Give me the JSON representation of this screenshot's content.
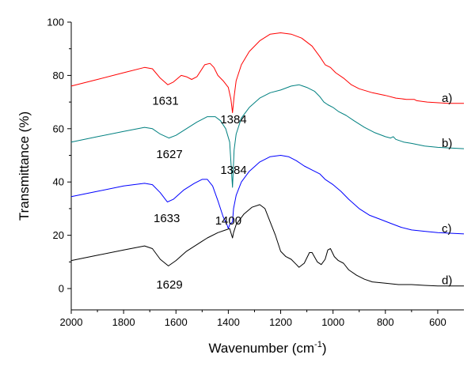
{
  "chart_data": {
    "type": "line",
    "xlabel": "Wavenumber (cm",
    "xlabel_sup": "-1",
    "xlabel_tail": ")",
    "ylabel": "Transmittance (%)",
    "xlim": [
      2000,
      500
    ],
    "ylim": [
      -8,
      100
    ],
    "x_reversed": true,
    "x_ticks": [
      2000,
      1800,
      1600,
      1400,
      1200,
      1000,
      800,
      600
    ],
    "y_ticks": [
      0,
      20,
      40,
      60,
      80,
      100
    ],
    "grid": false,
    "series": [
      {
        "name": "a)",
        "color": "#ff0000",
        "points": [
          [
            2000,
            76
          ],
          [
            1900,
            78.5
          ],
          [
            1800,
            81
          ],
          [
            1720,
            83
          ],
          [
            1690,
            82.5
          ],
          [
            1660,
            79
          ],
          [
            1631,
            76.5
          ],
          [
            1610,
            77.5
          ],
          [
            1580,
            80
          ],
          [
            1560,
            79.5
          ],
          [
            1540,
            78.5
          ],
          [
            1520,
            79.5
          ],
          [
            1490,
            84
          ],
          [
            1470,
            84.5
          ],
          [
            1455,
            83
          ],
          [
            1440,
            80
          ],
          [
            1420,
            78
          ],
          [
            1400,
            75.5
          ],
          [
            1390,
            71
          ],
          [
            1384,
            66
          ],
          [
            1378,
            72
          ],
          [
            1370,
            78
          ],
          [
            1350,
            84
          ],
          [
            1320,
            89
          ],
          [
            1280,
            93
          ],
          [
            1240,
            95.5
          ],
          [
            1200,
            96
          ],
          [
            1160,
            95.5
          ],
          [
            1120,
            94
          ],
          [
            1080,
            91
          ],
          [
            1050,
            87
          ],
          [
            1030,
            84
          ],
          [
            1010,
            83
          ],
          [
            990,
            81
          ],
          [
            960,
            79
          ],
          [
            930,
            76.5
          ],
          [
            900,
            75
          ],
          [
            850,
            73.5
          ],
          [
            800,
            72.5
          ],
          [
            760,
            71.5
          ],
          [
            720,
            71
          ],
          [
            690,
            71
          ],
          [
            680,
            70.5
          ],
          [
            640,
            70
          ],
          [
            560,
            69.5
          ],
          [
            500,
            69.5
          ]
        ]
      },
      {
        "name": "b)",
        "color": "#008080",
        "points": [
          [
            2000,
            55
          ],
          [
            1900,
            57
          ],
          [
            1800,
            59
          ],
          [
            1720,
            60.5
          ],
          [
            1690,
            60
          ],
          [
            1660,
            58
          ],
          [
            1627,
            56.5
          ],
          [
            1600,
            57.5
          ],
          [
            1560,
            60
          ],
          [
            1520,
            62.5
          ],
          [
            1480,
            64.5
          ],
          [
            1450,
            64.5
          ],
          [
            1430,
            63
          ],
          [
            1410,
            60
          ],
          [
            1395,
            55
          ],
          [
            1384,
            38
          ],
          [
            1378,
            52
          ],
          [
            1370,
            58
          ],
          [
            1350,
            64
          ],
          [
            1320,
            68
          ],
          [
            1280,
            71.5
          ],
          [
            1240,
            73.5
          ],
          [
            1200,
            74.5
          ],
          [
            1160,
            76
          ],
          [
            1130,
            76.5
          ],
          [
            1100,
            75.5
          ],
          [
            1070,
            74
          ],
          [
            1050,
            72
          ],
          [
            1035,
            70
          ],
          [
            1020,
            69
          ],
          [
            1000,
            68
          ],
          [
            980,
            66.5
          ],
          [
            950,
            65
          ],
          [
            920,
            63
          ],
          [
            880,
            60.5
          ],
          [
            840,
            58.5
          ],
          [
            800,
            57
          ],
          [
            780,
            56.5
          ],
          [
            770,
            57
          ],
          [
            760,
            56
          ],
          [
            730,
            55
          ],
          [
            700,
            54.5
          ],
          [
            650,
            53.5
          ],
          [
            600,
            53
          ],
          [
            500,
            52.5
          ]
        ]
      },
      {
        "name": "c)",
        "color": "#0000ff",
        "points": [
          [
            2000,
            34.5
          ],
          [
            1900,
            36.5
          ],
          [
            1800,
            38.5
          ],
          [
            1720,
            39.5
          ],
          [
            1690,
            39
          ],
          [
            1660,
            36
          ],
          [
            1633,
            32.5
          ],
          [
            1610,
            33.5
          ],
          [
            1570,
            37
          ],
          [
            1530,
            39.5
          ],
          [
            1500,
            41
          ],
          [
            1480,
            41
          ],
          [
            1460,
            38.5
          ],
          [
            1440,
            33
          ],
          [
            1420,
            27
          ],
          [
            1405,
            24
          ],
          [
            1400,
            22.5
          ],
          [
            1395,
            24
          ],
          [
            1384,
            25
          ],
          [
            1380,
            30
          ],
          [
            1370,
            35
          ],
          [
            1350,
            40
          ],
          [
            1320,
            44
          ],
          [
            1280,
            47.5
          ],
          [
            1240,
            49.5
          ],
          [
            1200,
            50
          ],
          [
            1170,
            49.5
          ],
          [
            1140,
            48
          ],
          [
            1110,
            46
          ],
          [
            1080,
            44.5
          ],
          [
            1050,
            43
          ],
          [
            1030,
            41
          ],
          [
            1000,
            39
          ],
          [
            970,
            36.5
          ],
          [
            940,
            33.5
          ],
          [
            900,
            30
          ],
          [
            860,
            27.5
          ],
          [
            820,
            26
          ],
          [
            780,
            24.5
          ],
          [
            740,
            23
          ],
          [
            700,
            22
          ],
          [
            650,
            21.5
          ],
          [
            600,
            21
          ],
          [
            500,
            20.5
          ]
        ]
      },
      {
        "name": "d)",
        "color": "#000000",
        "points": [
          [
            2000,
            10.5
          ],
          [
            1900,
            12.5
          ],
          [
            1800,
            14.5
          ],
          [
            1720,
            16
          ],
          [
            1690,
            15
          ],
          [
            1660,
            11
          ],
          [
            1629,
            8.5
          ],
          [
            1600,
            10.5
          ],
          [
            1560,
            14
          ],
          [
            1520,
            16.5
          ],
          [
            1480,
            19
          ],
          [
            1440,
            21
          ],
          [
            1410,
            22
          ],
          [
            1395,
            22.5
          ],
          [
            1384,
            19
          ],
          [
            1380,
            21
          ],
          [
            1370,
            24
          ],
          [
            1340,
            28
          ],
          [
            1310,
            30.5
          ],
          [
            1280,
            31.5
          ],
          [
            1260,
            30
          ],
          [
            1240,
            25
          ],
          [
            1220,
            20
          ],
          [
            1200,
            14
          ],
          [
            1180,
            12
          ],
          [
            1160,
            11
          ],
          [
            1140,
            9
          ],
          [
            1130,
            8
          ],
          [
            1110,
            9.5
          ],
          [
            1090,
            13.5
          ],
          [
            1080,
            13.5
          ],
          [
            1060,
            10
          ],
          [
            1045,
            9
          ],
          [
            1030,
            11
          ],
          [
            1020,
            14.5
          ],
          [
            1010,
            15
          ],
          [
            995,
            12
          ],
          [
            980,
            10.5
          ],
          [
            960,
            9.5
          ],
          [
            940,
            7
          ],
          [
            910,
            5
          ],
          [
            880,
            3.5
          ],
          [
            850,
            2.5
          ],
          [
            800,
            2
          ],
          [
            750,
            1.5
          ],
          [
            700,
            1.5
          ],
          [
            650,
            1.2
          ],
          [
            600,
            1
          ],
          [
            500,
            1
          ]
        ]
      }
    ],
    "annotations": [
      {
        "text": "1631",
        "x": 1640,
        "y": 69
      },
      {
        "text": "1384",
        "x": 1380,
        "y": 62
      },
      {
        "text": "1627",
        "x": 1625,
        "y": 49
      },
      {
        "text": "1384",
        "x": 1380,
        "y": 43
      },
      {
        "text": "1633",
        "x": 1635,
        "y": 25
      },
      {
        "text": "1400",
        "x": 1400,
        "y": 24
      },
      {
        "text": "1629",
        "x": 1625,
        "y": 0
      }
    ]
  }
}
